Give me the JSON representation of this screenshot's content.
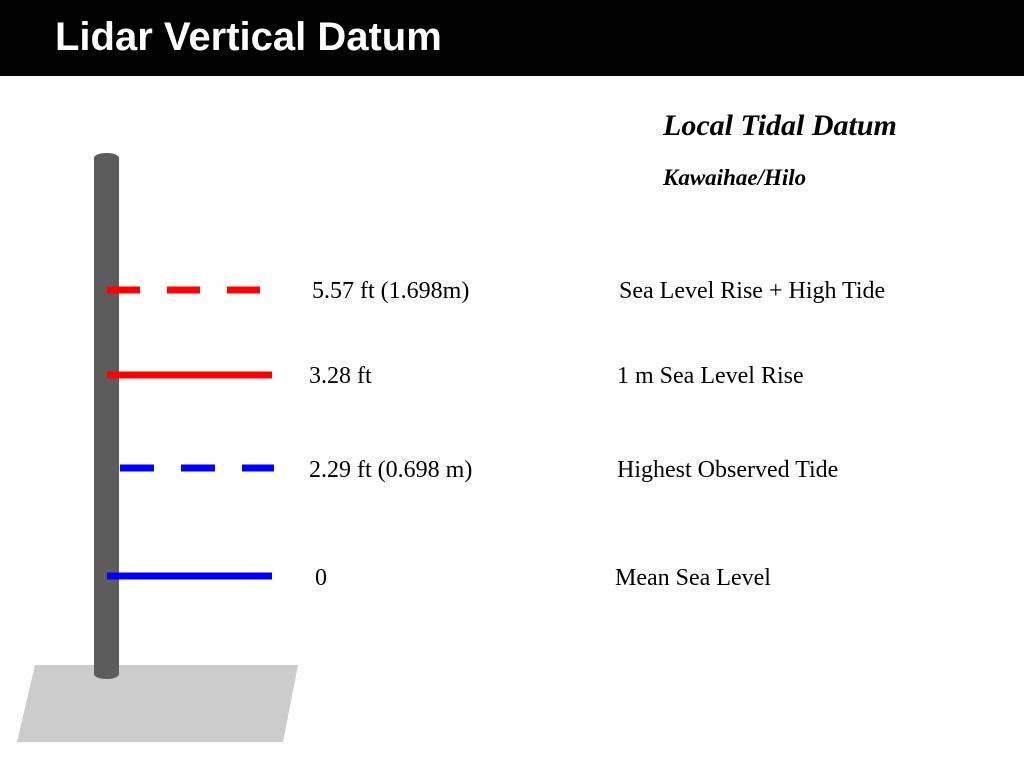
{
  "header": {
    "title": "Lidar Vertical Datum"
  },
  "datum": {
    "heading": "Local Tidal Datum",
    "location": "Kawaihae/Hilo"
  },
  "levels": [
    {
      "value": "5.57 ft (1.698m)",
      "description": "Sea Level Rise + High Tide"
    },
    {
      "value": "3.28 ft",
      "description": "1 m Sea Level Rise"
    },
    {
      "value": "2.29 ft (0.698 m)",
      "description": "Highest Observed Tide"
    },
    {
      "value": "0",
      "description": "Mean Sea Level"
    }
  ]
}
